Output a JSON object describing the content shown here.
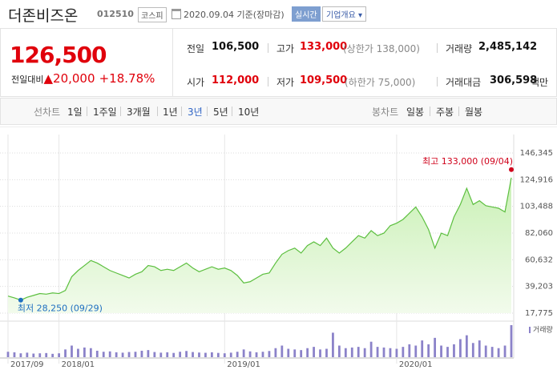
{
  "header": {
    "name": "더존비즈온",
    "code": "012510",
    "market": "코스피",
    "date": "2020.09.04 기준(장마감)",
    "realtime": "실시간",
    "company": "기업개요"
  },
  "quote": {
    "price": "126,500",
    "change_label": "전일대비",
    "change": "▲20,000",
    "change_rate": "+18.78%",
    "stats": [
      {
        "label": "전일",
        "value": "106,500"
      },
      {
        "label": "고가",
        "value": "133,000",
        "note": "(상한가 138,000)"
      },
      {
        "label": "거래량",
        "value": "2,485,142"
      },
      {
        "label": "시가",
        "value": "112,000"
      },
      {
        "label": "저가",
        "value": "109,500",
        "note": "(하한가 75,000)"
      },
      {
        "label": "거래대금",
        "value": "306,598",
        "unit": "백만"
      }
    ]
  },
  "tabs": {
    "line_label": "선차트",
    "line": [
      "1일",
      "1주일",
      "3개월",
      "1년",
      "3년",
      "5년",
      "10년"
    ],
    "selected": 4,
    "candle_label": "봉차트",
    "candle": [
      "일봉",
      "주봉",
      "월봉"
    ]
  },
  "chart_data": {
    "type": "area",
    "color": "#5cbf3f",
    "categories": [
      "2017/09",
      null,
      null,
      null,
      null,
      null,
      null,
      null,
      "2018/01",
      null,
      null,
      null,
      null,
      null,
      null,
      null,
      null,
      null,
      null,
      null,
      null,
      null,
      null,
      null,
      null,
      null,
      null,
      null,
      null,
      null,
      null,
      null,
      null,
      null,
      "2019/01",
      null,
      null,
      null,
      null,
      null,
      null,
      null,
      null,
      null,
      null,
      null,
      null,
      null,
      null,
      null,
      null,
      null,
      null,
      null,
      null,
      null,
      null,
      null,
      null,
      null,
      null,
      "2020/01",
      null,
      null,
      null,
      null,
      null,
      null,
      null,
      null,
      null,
      null,
      null,
      null,
      null,
      null,
      null,
      null,
      null,
      null
    ],
    "values": [
      31500,
      30000,
      28250,
      30500,
      32000,
      33500,
      33000,
      34000,
      33500,
      36000,
      47000,
      52000,
      56000,
      60000,
      58000,
      55000,
      52000,
      50000,
      48000,
      46000,
      49000,
      51000,
      56000,
      55000,
      52000,
      53000,
      52000,
      55000,
      58000,
      54000,
      51000,
      53000,
      55000,
      53000,
      54000,
      52000,
      48000,
      42000,
      43000,
      46000,
      49000,
      50000,
      58000,
      65000,
      68000,
      70000,
      66000,
      72000,
      75000,
      72000,
      78000,
      70000,
      66000,
      70000,
      75000,
      80000,
      78000,
      84000,
      80000,
      82000,
      88000,
      90000,
      93000,
      98000,
      103000,
      95000,
      85000,
      70000,
      82000,
      80000,
      95000,
      105000,
      118000,
      105000,
      108000,
      104000,
      103000,
      102000,
      99000,
      126500
    ],
    "volume": {
      "name": "거래량",
      "color": "#8b82c9",
      "values": [
        420000,
        380000,
        300000,
        350000,
        280000,
        300000,
        320000,
        260000,
        300000,
        600000,
        900000,
        650000,
        750000,
        700000,
        500000,
        420000,
        450000,
        380000,
        350000,
        400000,
        420000,
        500000,
        550000,
        400000,
        350000,
        380000,
        330000,
        420000,
        480000,
        400000,
        360000,
        340000,
        380000,
        330000,
        300000,
        350000,
        420000,
        600000,
        450000,
        380000,
        420000,
        480000,
        700000,
        900000,
        650000,
        600000,
        550000,
        700000,
        800000,
        600000,
        650000,
        1900000,
        900000,
        700000,
        750000,
        800000,
        700000,
        1200000,
        800000,
        750000,
        700000,
        650000,
        800000,
        1000000,
        900000,
        1300000,
        1000000,
        1500000,
        900000,
        800000,
        1000000,
        1400000,
        1700000,
        1100000,
        1300000,
        900000,
        800000,
        700000,
        900000,
        2485142
      ]
    },
    "high": {
      "label": "최고 133,000 (09/04)",
      "value": 133000,
      "color": "#d0021b"
    },
    "low": {
      "label": "최저 28,250 (09/29)",
      "value": 28250,
      "color": "#1e6fc0"
    },
    "ylim": [
      17775,
      146345
    ],
    "yticks": [
      {
        "value": 146345,
        "label": "146,345"
      },
      {
        "value": 124916,
        "label": "124,916"
      },
      {
        "value": 103488,
        "label": "103,488"
      },
      {
        "value": 82060,
        "label": "82,060"
      },
      {
        "value": 60632,
        "label": "60,632"
      },
      {
        "value": 39203,
        "label": "39,203"
      },
      {
        "value": 17775,
        "label": "17,775"
      }
    ],
    "grid": true
  }
}
